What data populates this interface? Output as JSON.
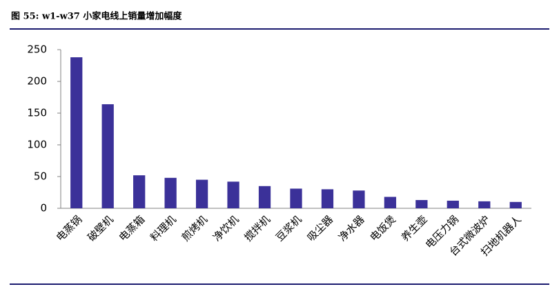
{
  "chart_data": {
    "type": "bar",
    "title": "图 55: w1-w37 小家电线上销量增加幅度",
    "categories": [
      "电蒸锅",
      "破壁机",
      "电蒸箱",
      "料理机",
      "煎烤机",
      "净饮机",
      "搅拌机",
      "豆浆机",
      "吸尘器",
      "净水器",
      "电饭煲",
      "养生壶",
      "电压力锅",
      "台式微波炉",
      "扫地机器人"
    ],
    "values": [
      238,
      164,
      52,
      48,
      45,
      42,
      35,
      31,
      30,
      28,
      18,
      13,
      12,
      11,
      10
    ],
    "color": "#3b3199",
    "ylim": [
      0,
      250
    ],
    "yticks": [
      0,
      50,
      100,
      150,
      200,
      250
    ],
    "grid": false
  }
}
